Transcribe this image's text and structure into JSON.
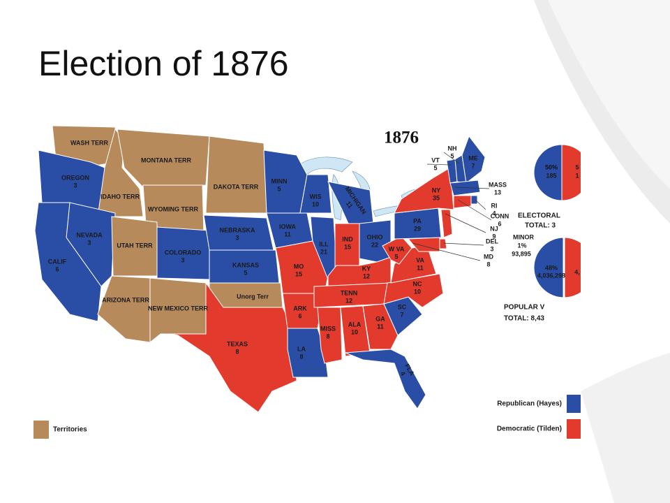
{
  "title": "Election of 1876",
  "map": {
    "year": "1876",
    "regions": [
      {
        "name": "WASH TERR",
        "color": "#b78a5b"
      },
      {
        "name": "OREGON",
        "votes": "3",
        "color": "#2a4ea6"
      },
      {
        "name": "IDAHO TERR",
        "color": "#b78a5b"
      },
      {
        "name": "MONTANA TERR",
        "color": "#b78a5b"
      },
      {
        "name": "WYOMING TERR",
        "color": "#b78a5b"
      },
      {
        "name": "DAKOTA TERR",
        "color": "#b78a5b"
      },
      {
        "name": "NEVADA",
        "votes": "3",
        "color": "#2a4ea6"
      },
      {
        "name": "CALIF",
        "votes": "6",
        "color": "#2a4ea6"
      },
      {
        "name": "UTAH TERR",
        "color": "#b78a5b"
      },
      {
        "name": "COLORADO",
        "votes": "3",
        "color": "#2a4ea6"
      },
      {
        "name": "NEBRASKA",
        "votes": "3",
        "color": "#2a4ea6"
      },
      {
        "name": "KANSAS",
        "votes": "5",
        "color": "#2a4ea6"
      },
      {
        "name": "ARIZONA TERR",
        "color": "#b78a5b"
      },
      {
        "name": "NEW MEXICO TERR",
        "color": "#b78a5b"
      },
      {
        "name": "Unorg Terr",
        "color": "#b78a5b"
      },
      {
        "name": "TEXAS",
        "votes": "8",
        "color": "#e23b2e"
      },
      {
        "name": "MINN",
        "votes": "5",
        "color": "#2a4ea6"
      },
      {
        "name": "IOWA",
        "votes": "11",
        "color": "#2a4ea6"
      },
      {
        "name": "MO",
        "votes": "15",
        "color": "#e23b2e"
      },
      {
        "name": "ARK",
        "votes": "6",
        "color": "#e23b2e"
      },
      {
        "name": "LA",
        "votes": "8",
        "color": "#2a4ea6"
      },
      {
        "name": "WIS",
        "votes": "10",
        "color": "#2a4ea6"
      },
      {
        "name": "ILL",
        "votes": "21",
        "color": "#2a4ea6"
      },
      {
        "name": "MICHIGAN",
        "votes": "11",
        "color": "#2a4ea6"
      },
      {
        "name": "IND",
        "votes": "15",
        "color": "#e23b2e"
      },
      {
        "name": "OHIO",
        "votes": "22",
        "color": "#2a4ea6"
      },
      {
        "name": "KY",
        "votes": "12",
        "color": "#e23b2e"
      },
      {
        "name": "TENN",
        "votes": "12",
        "color": "#e23b2e"
      },
      {
        "name": "MISS",
        "votes": "8",
        "color": "#e23b2e"
      },
      {
        "name": "ALA",
        "votes": "10",
        "color": "#e23b2e"
      },
      {
        "name": "GA",
        "votes": "11",
        "color": "#e23b2e"
      },
      {
        "name": "FLA",
        "votes": "4",
        "color": "#2a4ea6"
      },
      {
        "name": "SC",
        "votes": "7",
        "color": "#2a4ea6"
      },
      {
        "name": "NC",
        "votes": "10",
        "color": "#e23b2e"
      },
      {
        "name": "VA",
        "votes": "11",
        "color": "#e23b2e"
      },
      {
        "name": "W VA",
        "votes": "5",
        "color": "#e23b2e"
      },
      {
        "name": "PA",
        "votes": "29",
        "color": "#2a4ea6"
      },
      {
        "name": "NY",
        "votes": "35",
        "color": "#e23b2e"
      },
      {
        "name": "VT",
        "votes": "5",
        "color": "#2a4ea6"
      },
      {
        "name": "NH",
        "votes": "5",
        "color": "#2a4ea6"
      },
      {
        "name": "ME",
        "votes": "7",
        "color": "#2a4ea6"
      },
      {
        "name": "MASS",
        "votes": "13",
        "color": "#2a4ea6"
      },
      {
        "name": "RI",
        "votes": "4",
        "color": "#2a4ea6"
      },
      {
        "name": "CONN",
        "votes": "6",
        "color": "#e23b2e"
      },
      {
        "name": "NJ",
        "votes": "9",
        "color": "#e23b2e"
      },
      {
        "name": "DEL",
        "votes": "3",
        "color": "#e23b2e"
      },
      {
        "name": "MD",
        "votes": "8",
        "color": "#e23b2e"
      }
    ],
    "electoral": {
      "label": "ELECTORAL",
      "total": "TOTAL: 3",
      "republican": {
        "percent": "50%",
        "votes": "185"
      },
      "democratic": {
        "percent": "5",
        "votes": "1"
      }
    },
    "popular": {
      "label": "POPULAR V",
      "total": "TOTAL: 8,43",
      "minor": {
        "label": "MINOR",
        "percent": "1%",
        "votes": "93,895"
      },
      "republican": {
        "percent": "48%",
        "votes": "4,036,298"
      },
      "democratic": {
        "votes": "4,"
      }
    },
    "legend": [
      {
        "label": "Republican (Hayes)",
        "color": "#2a4ea6"
      },
      {
        "label": "Democratic (Tilden)",
        "color": "#e23b2e"
      },
      {
        "label": "Territories",
        "color": "#b78a5b"
      }
    ]
  }
}
